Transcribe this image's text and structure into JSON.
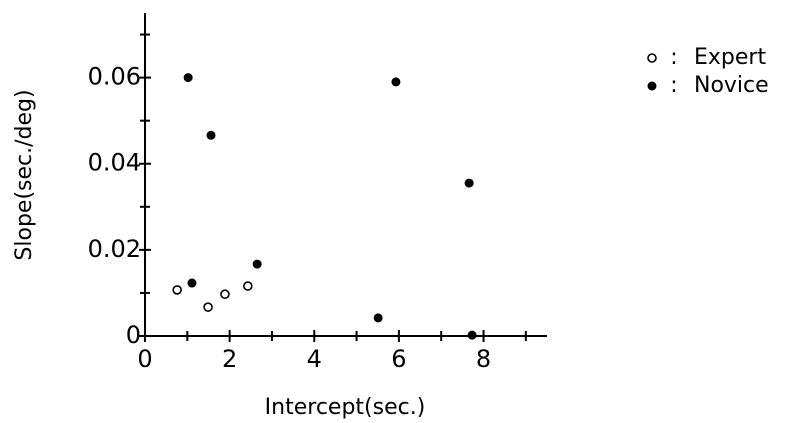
{
  "chart_data": {
    "type": "scatter",
    "x_label": "Intercept(sec.)",
    "y_label": "Slope(sec./deg)",
    "xlim": [
      0,
      9.5
    ],
    "ylim": [
      0,
      0.075
    ],
    "xticks": [
      0,
      2,
      4,
      6,
      8
    ],
    "yticks": [
      0,
      0.02,
      0.04,
      0.06
    ],
    "x_minor_ticks": [
      1,
      3,
      5,
      7,
      9
    ],
    "y_minor_ticks": [
      0.01,
      0.03,
      0.05,
      0.07
    ],
    "legend": "upper right",
    "legend_separator": ":",
    "series": [
      {
        "name": "Expert",
        "color": "#000000",
        "marker": "open",
        "x": [
          0.76,
          1.49,
          1.89,
          2.43
        ],
        "values": [
          0.0107,
          0.0067,
          0.0097,
          0.0116
        ]
      },
      {
        "name": "Novice",
        "color": "#000000",
        "marker": "filled",
        "x": [
          1.02,
          1.11,
          1.56,
          2.65,
          5.51,
          5.93,
          7.66,
          7.73
        ],
        "values": [
          0.06,
          0.0123,
          0.0466,
          0.0167,
          0.0042,
          0.059,
          0.0355,
          0.0002
        ]
      }
    ]
  }
}
